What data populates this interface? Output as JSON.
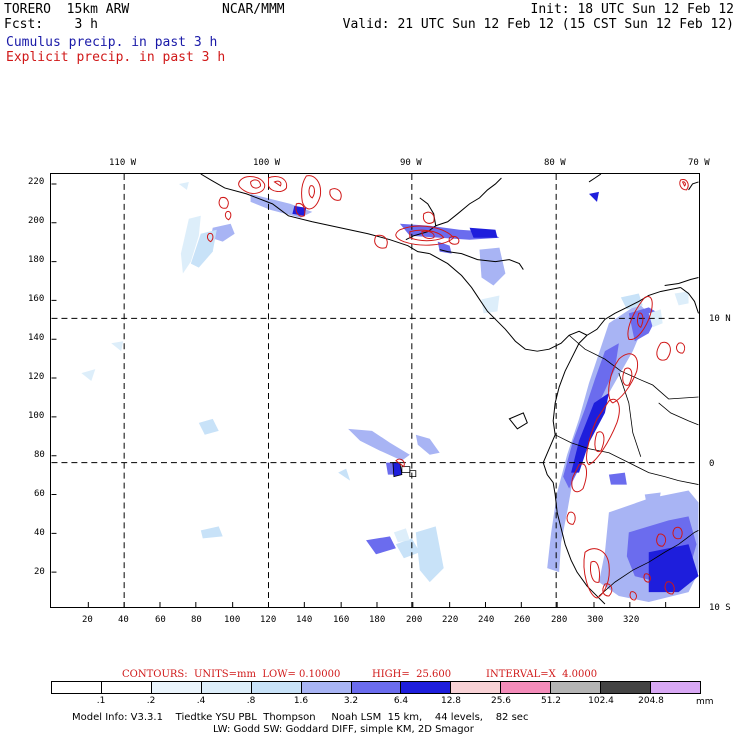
{
  "header": {
    "model": "TORERO  15km ARW",
    "org": "NCAR/MMM",
    "init": "Init: 18 UTC Sun 12 Feb 12",
    "fcst": "Fcst:    3 h",
    "valid": "Valid: 21 UTC Sun 12 Feb 12 (15 CST Sun 12 Feb 12)",
    "field1": "Cumulus precip. in past 3 h",
    "field2": "Explicit precip. in past 3 h"
  },
  "map": {
    "lon_labels": [
      "110 W",
      "100 W",
      "90 W",
      "80 W",
      "70 W"
    ],
    "lat_labels": [
      "10 N",
      "0",
      "10 S"
    ],
    "y_ticks": [
      "220",
      "200",
      "180",
      "160",
      "140",
      "120",
      "100",
      "80",
      "60",
      "40",
      "20"
    ],
    "x_ticks": [
      "20",
      "40",
      "60",
      "80",
      "100",
      "120",
      "140",
      "160",
      "180",
      "200",
      "220",
      "240",
      "260",
      "280",
      "300",
      "320"
    ]
  },
  "contours": {
    "units": "CONTOURS:  UNITS=mm  LOW= 0.10000",
    "high": "HIGH=  25.600",
    "interval": "INTERVAL=X  4.0000"
  },
  "legend": {
    "labels": [
      ".1",
      ".2",
      ".4",
      ".8",
      "1.6",
      "3.2",
      "6.4",
      "12.8",
      "25.6",
      "51.2",
      "102.4",
      "204.8"
    ],
    "unit": "mm",
    "colors": [
      "#ffffff",
      "#ffffff",
      "#eaf4fc",
      "#ddeefa",
      "#c8e2f8",
      "#a8b4f4",
      "#6b6cee",
      "#1e1edc",
      "#f8d2d6",
      "#f48cba",
      "#b4b4b4",
      "#444444",
      "#d8a8f4"
    ]
  },
  "footer": {
    "line1": "Model Info: V3.3.1    Tiedtke YSU PBL  Thompson     Noah LSM  15 km,    44 levels,    82 sec",
    "line2": "LW: Godd SW: Goddard DIFF, simple KM, 2D Smagor"
  }
}
